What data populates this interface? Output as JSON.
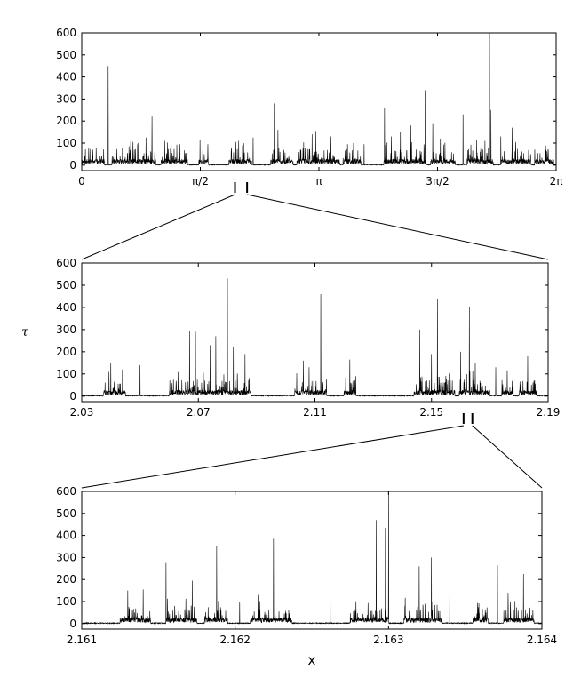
{
  "chart_data": [
    {
      "type": "line",
      "panel": "top",
      "ylabel": "",
      "xlabel": "",
      "xlim": [
        0,
        6.2832
      ],
      "ylim": [
        -25,
        600
      ],
      "xtick_labels": [
        "0",
        "π/2",
        "π",
        "3π/2",
        "2π"
      ],
      "xtick_values": [
        0,
        1.5708,
        3.1416,
        4.7124,
        6.2832
      ],
      "ytick_labels": [
        "0",
        "100",
        "200",
        "300",
        "400",
        "500",
        "600"
      ],
      "ytick_values": [
        0,
        100,
        200,
        300,
        400,
        500,
        600
      ],
      "seed": 11,
      "segments": [
        [
          0.0,
          0.3
        ],
        [
          0.4,
          0.98
        ],
        [
          1.05,
          1.4
        ],
        [
          1.55,
          1.68
        ],
        [
          1.95,
          2.25
        ],
        [
          2.5,
          2.8
        ],
        [
          2.85,
          3.42
        ],
        [
          3.46,
          3.7
        ],
        [
          4.0,
          4.55
        ],
        [
          4.62,
          4.95
        ],
        [
          5.1,
          5.45
        ],
        [
          5.55,
          5.95
        ],
        [
          6.0,
          6.25
        ]
      ],
      "spikes": [
        [
          0.35,
          450
        ],
        [
          0.65,
          120
        ],
        [
          0.85,
          125
        ],
        [
          0.93,
          220
        ],
        [
          1.1,
          110
        ],
        [
          1.3,
          95
        ],
        [
          2.08,
          110
        ],
        [
          2.13,
          90
        ],
        [
          2.27,
          125
        ],
        [
          2.55,
          280
        ],
        [
          2.6,
          160
        ],
        [
          3.05,
          140
        ],
        [
          3.1,
          155
        ],
        [
          3.3,
          130
        ],
        [
          3.52,
          95
        ],
        [
          3.6,
          100
        ],
        [
          3.74,
          95
        ],
        [
          4.01,
          260
        ],
        [
          4.1,
          130
        ],
        [
          4.22,
          150
        ],
        [
          4.36,
          180
        ],
        [
          4.55,
          340
        ],
        [
          4.65,
          190
        ],
        [
          4.75,
          120
        ],
        [
          5.05,
          230
        ],
        [
          5.4,
          600
        ],
        [
          5.42,
          250
        ],
        [
          5.55,
          130
        ],
        [
          5.7,
          170
        ]
      ]
    },
    {
      "type": "line",
      "panel": "middle",
      "ylabel": "τ",
      "xlabel": "",
      "xlim": [
        2.03,
        2.19
      ],
      "ylim": [
        -25,
        600
      ],
      "xtick_labels": [
        "2.03",
        "2.07",
        "2.11",
        "2.15",
        "2.19"
      ],
      "xtick_values": [
        2.03,
        2.07,
        2.11,
        2.15,
        2.19
      ],
      "ytick_labels": [
        "0",
        "100",
        "200",
        "300",
        "400",
        "500",
        "600"
      ],
      "ytick_values": [
        0,
        100,
        200,
        300,
        400,
        500,
        600
      ],
      "seed": 23,
      "segments": [
        [
          2.0375,
          2.045
        ],
        [
          2.06,
          2.072
        ],
        [
          2.072,
          2.088
        ],
        [
          2.103,
          2.114
        ],
        [
          2.12,
          2.124
        ],
        [
          2.144,
          2.158
        ],
        [
          2.1595,
          2.17
        ],
        [
          2.174,
          2.178
        ],
        [
          2.18,
          2.186
        ]
      ],
      "spikes": [
        [
          2.04,
          150
        ],
        [
          2.044,
          120
        ],
        [
          2.05,
          140
        ],
        [
          2.067,
          295
        ],
        [
          2.069,
          290
        ],
        [
          2.074,
          230
        ],
        [
          2.076,
          270
        ],
        [
          2.08,
          530
        ],
        [
          2.082,
          220
        ],
        [
          2.086,
          190
        ],
        [
          2.106,
          160
        ],
        [
          2.112,
          460
        ],
        [
          2.108,
          130
        ],
        [
          2.122,
          165
        ],
        [
          2.124,
          90
        ],
        [
          2.146,
          300
        ],
        [
          2.15,
          190
        ],
        [
          2.152,
          440
        ],
        [
          2.16,
          200
        ],
        [
          2.163,
          400
        ],
        [
          2.165,
          150
        ],
        [
          2.172,
          130
        ],
        [
          2.178,
          90
        ],
        [
          2.183,
          180
        ]
      ]
    },
    {
      "type": "line",
      "panel": "bottom",
      "ylabel": "",
      "xlabel": "x",
      "xlim": [
        2.161,
        2.164
      ],
      "ylim": [
        -25,
        600
      ],
      "xtick_labels": [
        "2.161",
        "2.162",
        "2.163",
        "2.164"
      ],
      "xtick_values": [
        2.161,
        2.162,
        2.163,
        2.164
      ],
      "ytick_labels": [
        "0",
        "100",
        "200",
        "300",
        "400",
        "500",
        "600"
      ],
      "ytick_values": [
        0,
        100,
        200,
        300,
        400,
        500,
        600
      ],
      "seed": 37,
      "segments": [
        [
          2.16125,
          2.16145
        ],
        [
          2.16155,
          2.16175
        ],
        [
          2.1618,
          2.16195
        ],
        [
          2.1621,
          2.16237
        ],
        [
          2.16275,
          2.163
        ],
        [
          2.1631,
          2.16335
        ],
        [
          2.16355,
          2.16365
        ],
        [
          2.16375,
          2.16395
        ]
      ],
      "spikes": [
        [
          2.1613,
          150
        ],
        [
          2.1614,
          155
        ],
        [
          2.16155,
          275
        ],
        [
          2.16172,
          195
        ],
        [
          2.16188,
          350
        ],
        [
          2.16203,
          100
        ],
        [
          2.16215,
          130
        ],
        [
          2.16225,
          385
        ],
        [
          2.16262,
          170
        ],
        [
          2.16292,
          470
        ],
        [
          2.16298,
          435
        ],
        [
          2.163,
          600
        ],
        [
          2.1632,
          260
        ],
        [
          2.16328,
          300
        ],
        [
          2.1634,
          200
        ],
        [
          2.16371,
          265
        ],
        [
          2.16378,
          140
        ],
        [
          2.16388,
          225
        ]
      ]
    }
  ]
}
